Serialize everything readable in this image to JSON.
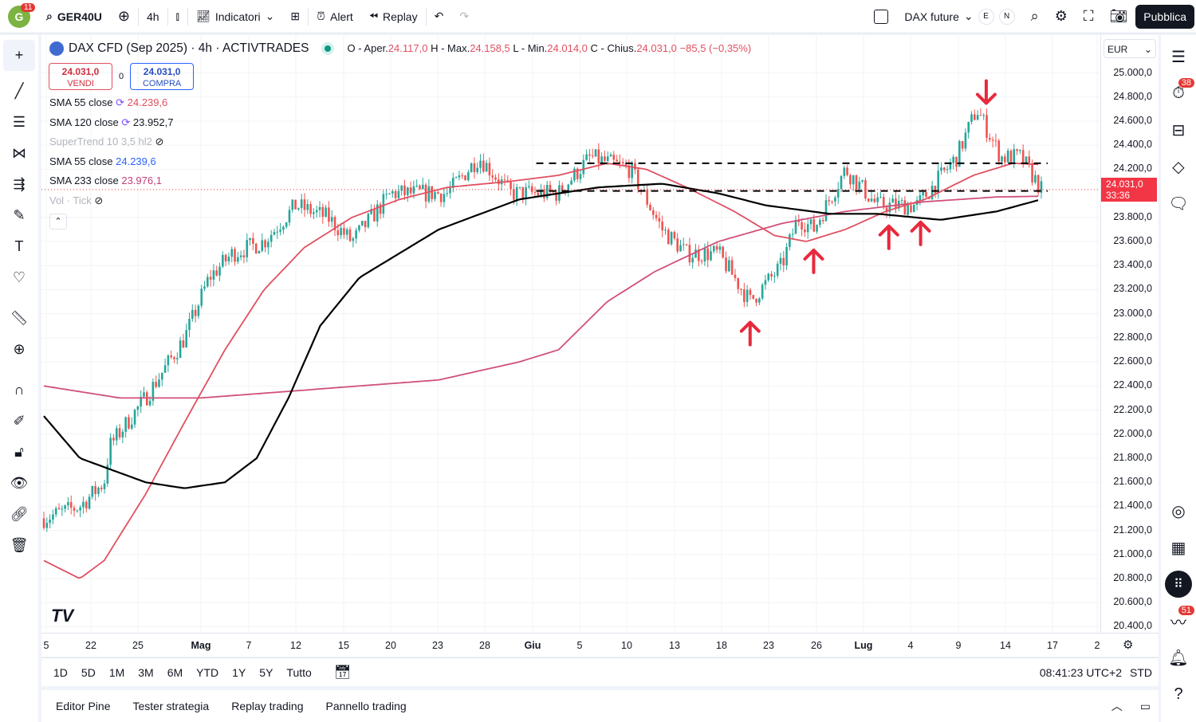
{
  "topbar": {
    "avatar": "G",
    "avatar_badge": "11",
    "symbol": "GER40U",
    "interval": "4h",
    "indicators": "Indicatori",
    "alert": "Alert",
    "replay": "Replay",
    "compare": "DAX future",
    "e": "E",
    "n": "N",
    "publish": "Pubblica"
  },
  "legend": {
    "title": "DAX CFD (Sep 2025) · 4h · ACTIVTRADES",
    "o_label": "O - Aper.",
    "o": "24.117,0",
    "h_label": "H - Max.",
    "h": "24.158,5",
    "l_label": "L - Min.",
    "l": "24.014,0",
    "c_label": "C - Chius.",
    "c": "24.031,0",
    "change": "−85,5 (−0,35%)",
    "sell_price": "24.031,0",
    "sell": "VENDI",
    "spread": "0",
    "buy_price": "24.031,0",
    "buy": "COMPRA",
    "indicators": [
      {
        "name": "SMA 55 close",
        "value": "24.239,6",
        "color": "#e05060"
      },
      {
        "name": "SMA 120 close",
        "value": "23.952,7",
        "color": "#131722"
      },
      {
        "name": "SuperTrend 10 3,5 hl2",
        "value": "",
        "color": "#b2b5be"
      },
      {
        "name": "SMA 55 close",
        "value": "24.239,6",
        "color": "#2962ff"
      },
      {
        "name": "SMA 233 close",
        "value": "23.976,1",
        "color": "#c2407a"
      },
      {
        "name": "Vol · Tick",
        "value": "",
        "color": "#b2b5be"
      }
    ]
  },
  "price_axis": {
    "currency": "EUR",
    "labels": [
      "25.000,0",
      "24.800,0",
      "24.600,0",
      "24.400,0",
      "24.200,0",
      "23.800,0",
      "23.600,0",
      "23.400,0",
      "23.200,0",
      "23.000,0",
      "22.800,0",
      "22.600,0",
      "22.400,0",
      "22.200,0",
      "22.000,0",
      "21.800,0",
      "21.600,0",
      "21.400,0",
      "21.200,0",
      "21.000,0",
      "20.800,0",
      "20.600,0",
      "20.400,0"
    ],
    "last_price": "24.031,0",
    "countdown": "33:36"
  },
  "time_axis": [
    "5",
    "22",
    "25",
    "Mag",
    "7",
    "12",
    "15",
    "20",
    "23",
    "28",
    "Giu",
    "5",
    "10",
    "13",
    "18",
    "23",
    "26",
    "Lug",
    "4",
    "9",
    "14",
    "17",
    "2"
  ],
  "ranges": [
    "1D",
    "5D",
    "1M",
    "3M",
    "6M",
    "YTD",
    "1Y",
    "5Y",
    "Tutto"
  ],
  "clock": "08:41:23 UTC+2",
  "session": "STD",
  "bottom_tabs": [
    "Editor Pine",
    "Tester strategia",
    "Replay trading",
    "Pannello trading"
  ],
  "right_badges": {
    "alerts": "38",
    "notifications": "51"
  },
  "colors": {
    "up": "#26a69a",
    "down": "#ef5350",
    "sma55": "#e05060",
    "sma120": "#000000",
    "sma233": "#d0507a",
    "arrow": "#e8293c"
  },
  "chart_data": {
    "type": "candlestick",
    "price_path": [
      [
        0,
        21300
      ],
      [
        0.034,
        21400
      ],
      [
        0.057,
        21600
      ],
      [
        0.062,
        21900
      ],
      [
        0.096,
        22300
      ],
      [
        0.133,
        22800
      ],
      [
        0.156,
        23300
      ],
      [
        0.178,
        23500
      ],
      [
        0.208,
        23600
      ],
      [
        0.238,
        23900
      ],
      [
        0.268,
        23800
      ],
      [
        0.291,
        23600
      ],
      [
        0.328,
        24000
      ],
      [
        0.381,
        24000
      ],
      [
        0.411,
        24300
      ],
      [
        0.441,
        24000
      ],
      [
        0.486,
        24000
      ],
      [
        0.516,
        24300
      ],
      [
        0.554,
        24200
      ],
      [
        0.584,
        23700
      ],
      [
        0.607,
        23500
      ],
      [
        0.637,
        23500
      ],
      [
        0.667,
        23100
      ],
      [
        0.697,
        23400
      ],
      [
        0.712,
        23800
      ],
      [
        0.727,
        23700
      ],
      [
        0.757,
        24200
      ],
      [
        0.787,
        23900
      ],
      [
        0.825,
        23900
      ],
      [
        0.862,
        24300
      ],
      [
        0.881,
        24700
      ],
      [
        0.904,
        24300
      ],
      [
        0.923,
        24300
      ],
      [
        0.942,
        24031
      ]
    ],
    "sma120": [
      [
        0,
        22150
      ],
      [
        0.034,
        21800
      ],
      [
        0.096,
        21600
      ],
      [
        0.133,
        21550
      ],
      [
        0.171,
        21600
      ],
      [
        0.201,
        21800
      ],
      [
        0.231,
        22300
      ],
      [
        0.261,
        22900
      ],
      [
        0.298,
        23300
      ],
      [
        0.373,
        23700
      ],
      [
        0.449,
        23950
      ],
      [
        0.524,
        24050
      ],
      [
        0.584,
        24080
      ],
      [
        0.637,
        24000
      ],
      [
        0.682,
        23900
      ],
      [
        0.742,
        23830
      ],
      [
        0.787,
        23830
      ],
      [
        0.847,
        23780
      ],
      [
        0.9,
        23850
      ],
      [
        0.942,
        23950
      ]
    ],
    "sma55": [
      [
        0,
        20950
      ],
      [
        0.034,
        20800
      ],
      [
        0.057,
        20950
      ],
      [
        0.096,
        21500
      ],
      [
        0.133,
        22100
      ],
      [
        0.171,
        22700
      ],
      [
        0.208,
        23200
      ],
      [
        0.246,
        23550
      ],
      [
        0.291,
        23800
      ],
      [
        0.336,
        23950
      ],
      [
        0.381,
        24050
      ],
      [
        0.441,
        24100
      ],
      [
        0.486,
        24150
      ],
      [
        0.532,
        24250
      ],
      [
        0.569,
        24200
      ],
      [
        0.607,
        24050
      ],
      [
        0.652,
        23850
      ],
      [
        0.69,
        23650
      ],
      [
        0.72,
        23600
      ],
      [
        0.757,
        23700
      ],
      [
        0.795,
        23850
      ],
      [
        0.832,
        23950
      ],
      [
        0.878,
        24150
      ],
      [
        0.915,
        24250
      ],
      [
        0.942,
        24239
      ]
    ],
    "sma233": [
      [
        0,
        22400
      ],
      [
        0.072,
        22300
      ],
      [
        0.148,
        22300
      ],
      [
        0.223,
        22350
      ],
      [
        0.298,
        22400
      ],
      [
        0.373,
        22450
      ],
      [
        0.449,
        22600
      ],
      [
        0.486,
        22700
      ],
      [
        0.532,
        23100
      ],
      [
        0.577,
        23350
      ],
      [
        0.637,
        23600
      ],
      [
        0.697,
        23750
      ],
      [
        0.757,
        23850
      ],
      [
        0.832,
        23930
      ],
      [
        0.9,
        23970
      ],
      [
        0.942,
        23976
      ]
    ],
    "levels": [
      24250,
      24020
    ],
    "up_arrows": [
      0.667,
      0.727,
      0.798,
      0.828
    ],
    "down_arrows": [
      0.89
    ],
    "ylim": [
      20350,
      25050
    ]
  }
}
